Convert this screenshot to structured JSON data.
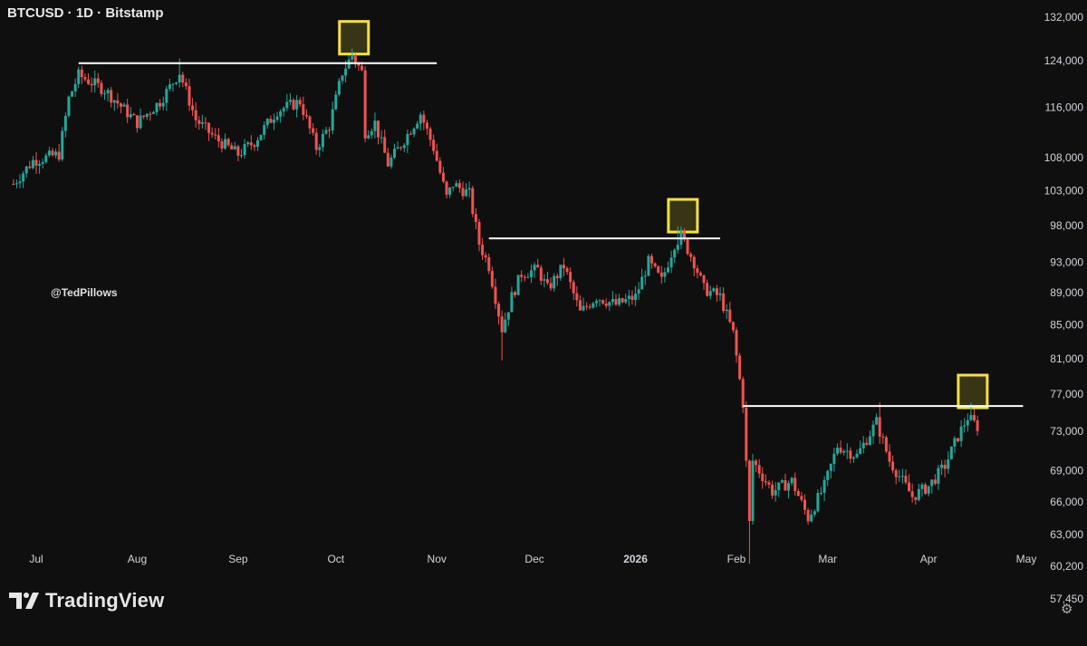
{
  "header": {
    "title": "BTCUSD · 1D · Bitstamp"
  },
  "annotation": "@TedPillows",
  "brand": {
    "name": "TradingView"
  },
  "settings_icon": "gear-icon",
  "colors": {
    "background": "#0f0f0f",
    "up": "#26a69a",
    "down": "#ef5350",
    "highlight": "#f5e042",
    "level": "#ffffff",
    "axis_text": "#d1d4dc"
  },
  "chart_data": {
    "type": "candlestick",
    "title": "BTCUSD · 1D · Bitstamp",
    "y_scale": "log",
    "y_ticks": [
      "132,000",
      "124,000",
      "116,000",
      "108,000",
      "103,000",
      "98,000",
      "93,000",
      "89,000",
      "85,000",
      "81,000",
      "77,000",
      "73,000",
      "69,000",
      "66,000",
      "63,000",
      "60,200",
      "57,450"
    ],
    "y_tick_values": [
      132000,
      124000,
      116000,
      108000,
      103000,
      98000,
      93000,
      89000,
      85000,
      81000,
      77000,
      73000,
      69000,
      66000,
      63000,
      60200,
      57450
    ],
    "x_ticks": [
      "Jul",
      "Aug",
      "Sep",
      "Oct",
      "Nov",
      "Dec",
      "2026",
      "Feb",
      "Mar",
      "Apr",
      "May"
    ],
    "x_tick_dates": [
      "2025-07-01",
      "2025-08-01",
      "2025-09-01",
      "2025-10-01",
      "2025-11-01",
      "2025-12-01",
      "2026-01-01",
      "2026-02-01",
      "2026-03-01",
      "2026-04-01",
      "2026-05-01"
    ],
    "date_range": [
      "2025-06-24",
      "2026-04-16"
    ],
    "price_anchors": [
      [
        "2025-06-24",
        104000
      ],
      [
        "2025-06-30",
        107500
      ],
      [
        "2025-07-08",
        108500
      ],
      [
        "2025-07-11",
        117500
      ],
      [
        "2025-07-14",
        121500
      ],
      [
        "2025-07-22",
        119000
      ],
      [
        "2025-08-01",
        113500
      ],
      [
        "2025-08-08",
        117000
      ],
      [
        "2025-08-14",
        122000
      ],
      [
        "2025-08-19",
        114000
      ],
      [
        "2025-08-25",
        111000
      ],
      [
        "2025-09-01",
        108500
      ],
      [
        "2025-09-06",
        110500
      ],
      [
        "2025-09-13",
        115500
      ],
      [
        "2025-09-20",
        117000
      ],
      [
        "2025-09-25",
        109500
      ],
      [
        "2025-09-29",
        113000
      ],
      [
        "2025-10-03",
        122000
      ],
      [
        "2025-10-06",
        125000
      ],
      [
        "2025-10-09",
        122000
      ],
      [
        "2025-10-10",
        112000
      ],
      [
        "2025-10-13",
        113500
      ],
      [
        "2025-10-17",
        107000
      ],
      [
        "2025-10-21",
        110000
      ],
      [
        "2025-10-27",
        115000
      ],
      [
        "2025-10-31",
        109500
      ],
      [
        "2025-11-04",
        102000
      ],
      [
        "2025-11-06",
        104000
      ],
      [
        "2025-11-11",
        102500
      ],
      [
        "2025-11-14",
        95500
      ],
      [
        "2025-11-17",
        92500
      ],
      [
        "2025-11-21",
        84500
      ],
      [
        "2025-11-24",
        88500
      ],
      [
        "2025-11-27",
        91500
      ],
      [
        "2025-12-02",
        92000
      ],
      [
        "2025-12-05",
        89500
      ],
      [
        "2025-12-10",
        92500
      ],
      [
        "2025-12-15",
        86500
      ],
      [
        "2025-12-20",
        88500
      ],
      [
        "2025-12-26",
        87500
      ],
      [
        "2026-01-01",
        88500
      ],
      [
        "2026-01-05",
        93000
      ],
      [
        "2026-01-09",
        90500
      ],
      [
        "2026-01-13",
        95500
      ],
      [
        "2026-01-15",
        96500
      ],
      [
        "2026-01-19",
        93000
      ],
      [
        "2026-01-22",
        89500
      ],
      [
        "2026-01-27",
        88500
      ],
      [
        "2026-01-31",
        84000
      ],
      [
        "2026-02-03",
        76000
      ],
      [
        "2026-02-05",
        64000
      ],
      [
        "2026-02-06",
        70000
      ],
      [
        "2026-02-12",
        67000
      ],
      [
        "2026-02-18",
        68000
      ],
      [
        "2026-02-23",
        64500
      ],
      [
        "2026-02-28",
        67500
      ],
      [
        "2026-03-04",
        71500
      ],
      [
        "2026-03-10",
        70500
      ],
      [
        "2026-03-16",
        74000
      ],
      [
        "2026-03-20",
        70000
      ],
      [
        "2026-03-27",
        66500
      ],
      [
        "2026-04-01",
        67500
      ],
      [
        "2026-04-06",
        69500
      ],
      [
        "2026-04-10",
        72500
      ],
      [
        "2026-04-13",
        74500
      ],
      [
        "2026-04-16",
        73500
      ]
    ],
    "resistance_levels": [
      {
        "price": 123600,
        "from": "2025-07-14",
        "to": "2025-11-01"
      },
      {
        "price": 96200,
        "from": "2025-11-17",
        "to": "2026-01-27"
      },
      {
        "price": 75700,
        "from": "2026-02-03",
        "to": "2026-04-30"
      }
    ],
    "highlights": [
      {
        "date": "2025-10-06"
      },
      {
        "date": "2026-01-15"
      },
      {
        "date": "2026-04-14"
      }
    ],
    "grid": false,
    "legend": "none"
  }
}
